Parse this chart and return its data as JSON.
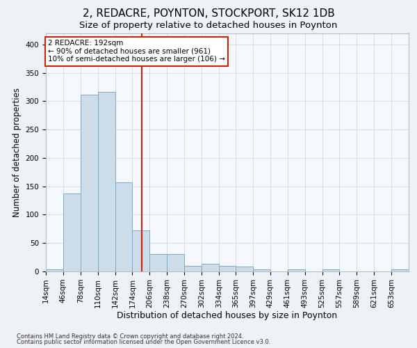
{
  "title": "2, REDACRE, POYNTON, STOCKPORT, SK12 1DB",
  "subtitle": "Size of property relative to detached houses in Poynton",
  "xlabel": "Distribution of detached houses by size in Poynton",
  "ylabel": "Number of detached properties",
  "bar_values": [
    4,
    137,
    312,
    316,
    157,
    72,
    31,
    31,
    10,
    14,
    10,
    8,
    4,
    0,
    4,
    0,
    4,
    0,
    0,
    0,
    4
  ],
  "bin_edges": [
    14,
    46,
    78,
    110,
    142,
    174,
    206,
    238,
    270,
    302,
    334,
    365,
    397,
    429,
    461,
    493,
    525,
    557,
    589,
    621,
    653,
    685
  ],
  "x_labels": [
    "14sqm",
    "46sqm",
    "78sqm",
    "110sqm",
    "142sqm",
    "174sqm",
    "206sqm",
    "238sqm",
    "270sqm",
    "302sqm",
    "334sqm",
    "365sqm",
    "397sqm",
    "429sqm",
    "461sqm",
    "493sqm",
    "525sqm",
    "557sqm",
    "589sqm",
    "621sqm",
    "653sqm"
  ],
  "bar_color": "#ccdce8",
  "bar_edge_color": "#7aaac8",
  "vline_x": 192,
  "vline_color": "#cc2200",
  "annotation_text": "2 REDACRE: 192sqm\n← 90% of detached houses are smaller (961)\n10% of semi-detached houses are larger (106) →",
  "annotation_box_color": "#ffffff",
  "annotation_box_edge": "#cc2200",
  "ylim": [
    0,
    420
  ],
  "yticks": [
    0,
    50,
    100,
    150,
    200,
    250,
    300,
    350,
    400
  ],
  "title_fontsize": 11,
  "subtitle_fontsize": 9.5,
  "xlabel_fontsize": 9,
  "ylabel_fontsize": 8.5,
  "tick_fontsize": 7.5,
  "footnote1": "Contains HM Land Registry data © Crown copyright and database right 2024.",
  "footnote2": "Contains public sector information licensed under the Open Government Licence v3.0.",
  "bg_color": "#eef2f7",
  "plot_bg_color": "#f5f8fc",
  "grid_color": "#c8d4e0"
}
